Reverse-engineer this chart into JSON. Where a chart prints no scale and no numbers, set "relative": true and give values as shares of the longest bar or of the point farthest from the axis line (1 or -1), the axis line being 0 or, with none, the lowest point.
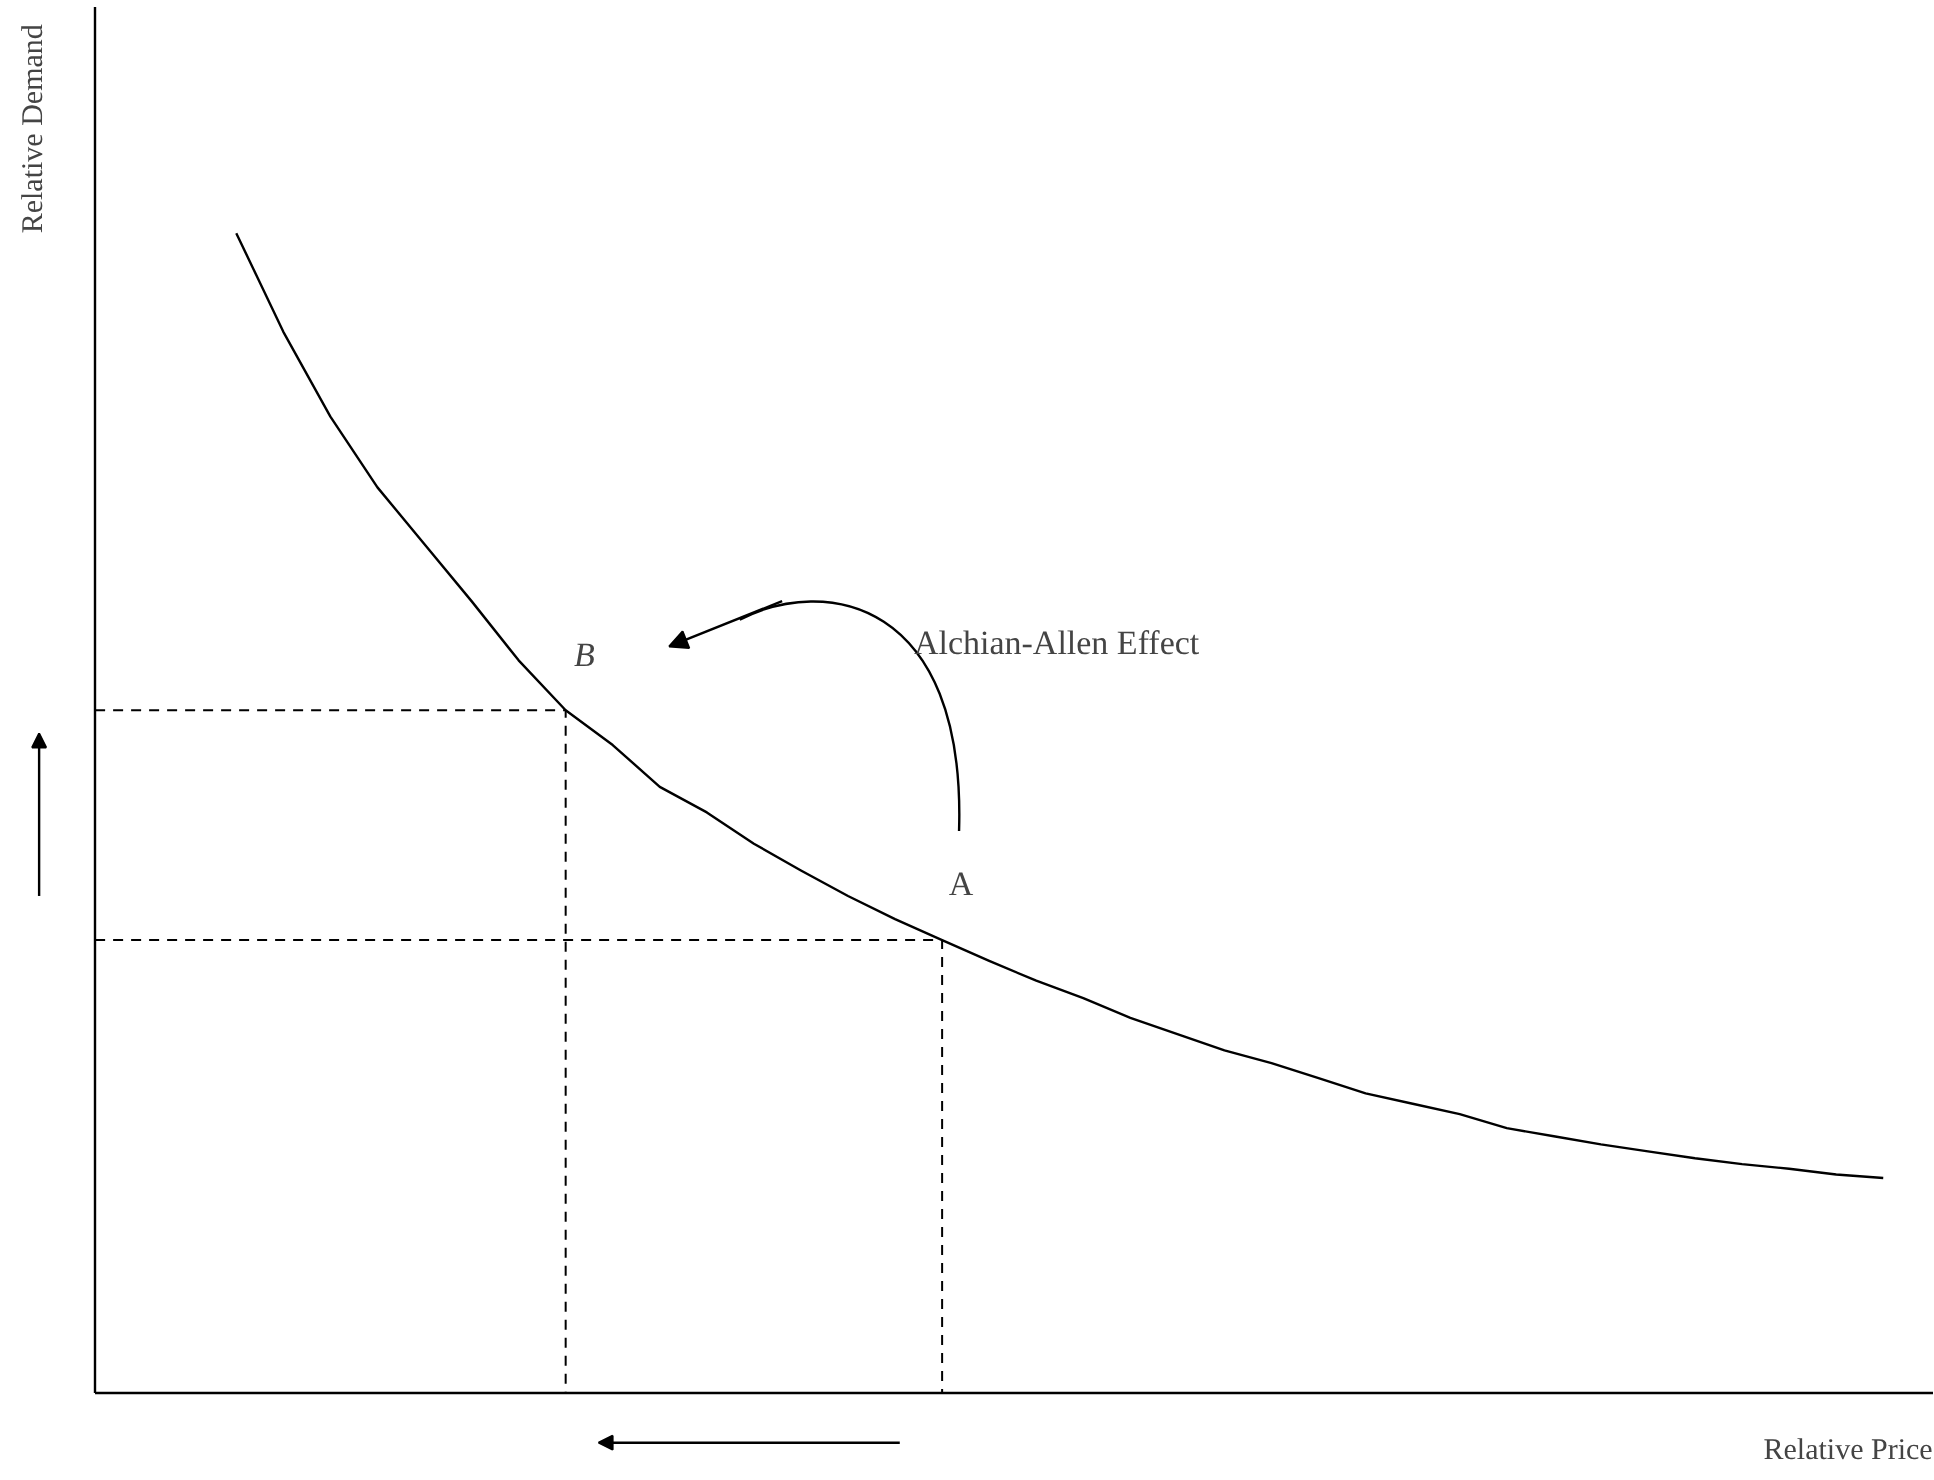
{
  "chart_data": {
    "type": "line",
    "relative": true,
    "xlabel": "Relative Price",
    "ylabel": "Relative Demand",
    "grid": false,
    "marker": "none",
    "categories": [
      null,
      null,
      null,
      null,
      null,
      null,
      null,
      null,
      null,
      null,
      null,
      null,
      null,
      null,
      null,
      null,
      null,
      null,
      null,
      null,
      null,
      null,
      null,
      null,
      null,
      null,
      null,
      null,
      null,
      null,
      null,
      null,
      null,
      null,
      null,
      null,
      null,
      null,
      null
    ],
    "series": [
      {
        "color": "#000000",
        "values": [
          null,
          null,
          null,
          1.0,
          0.915,
          0.842,
          0.781,
          0.732,
          0.683,
          0.632,
          0.589,
          0.559,
          0.523,
          0.501,
          0.474,
          0.451,
          0.429,
          0.409,
          0.391,
          0.373,
          0.356,
          0.341,
          0.324,
          0.31,
          0.296,
          0.285,
          0.272,
          0.259,
          0.25,
          0.241,
          0.229,
          0.222,
          0.215,
          0.209,
          0.203,
          0.198,
          0.194,
          0.189,
          0.186
        ]
      }
    ],
    "ref_lines": [
      {
        "axis": "y",
        "value": 0.589,
        "label": null,
        "color": "#000000",
        "line_style": "dashed"
      },
      {
        "axis": "y",
        "value": 0.391,
        "label": null,
        "color": "#000000",
        "line_style": "dashed"
      }
    ],
    "annotations": [
      {
        "text": "B",
        "y": 0.589
      },
      {
        "text": "A",
        "y": 0.391
      },
      "Alchian-Allen Effect"
    ]
  }
}
